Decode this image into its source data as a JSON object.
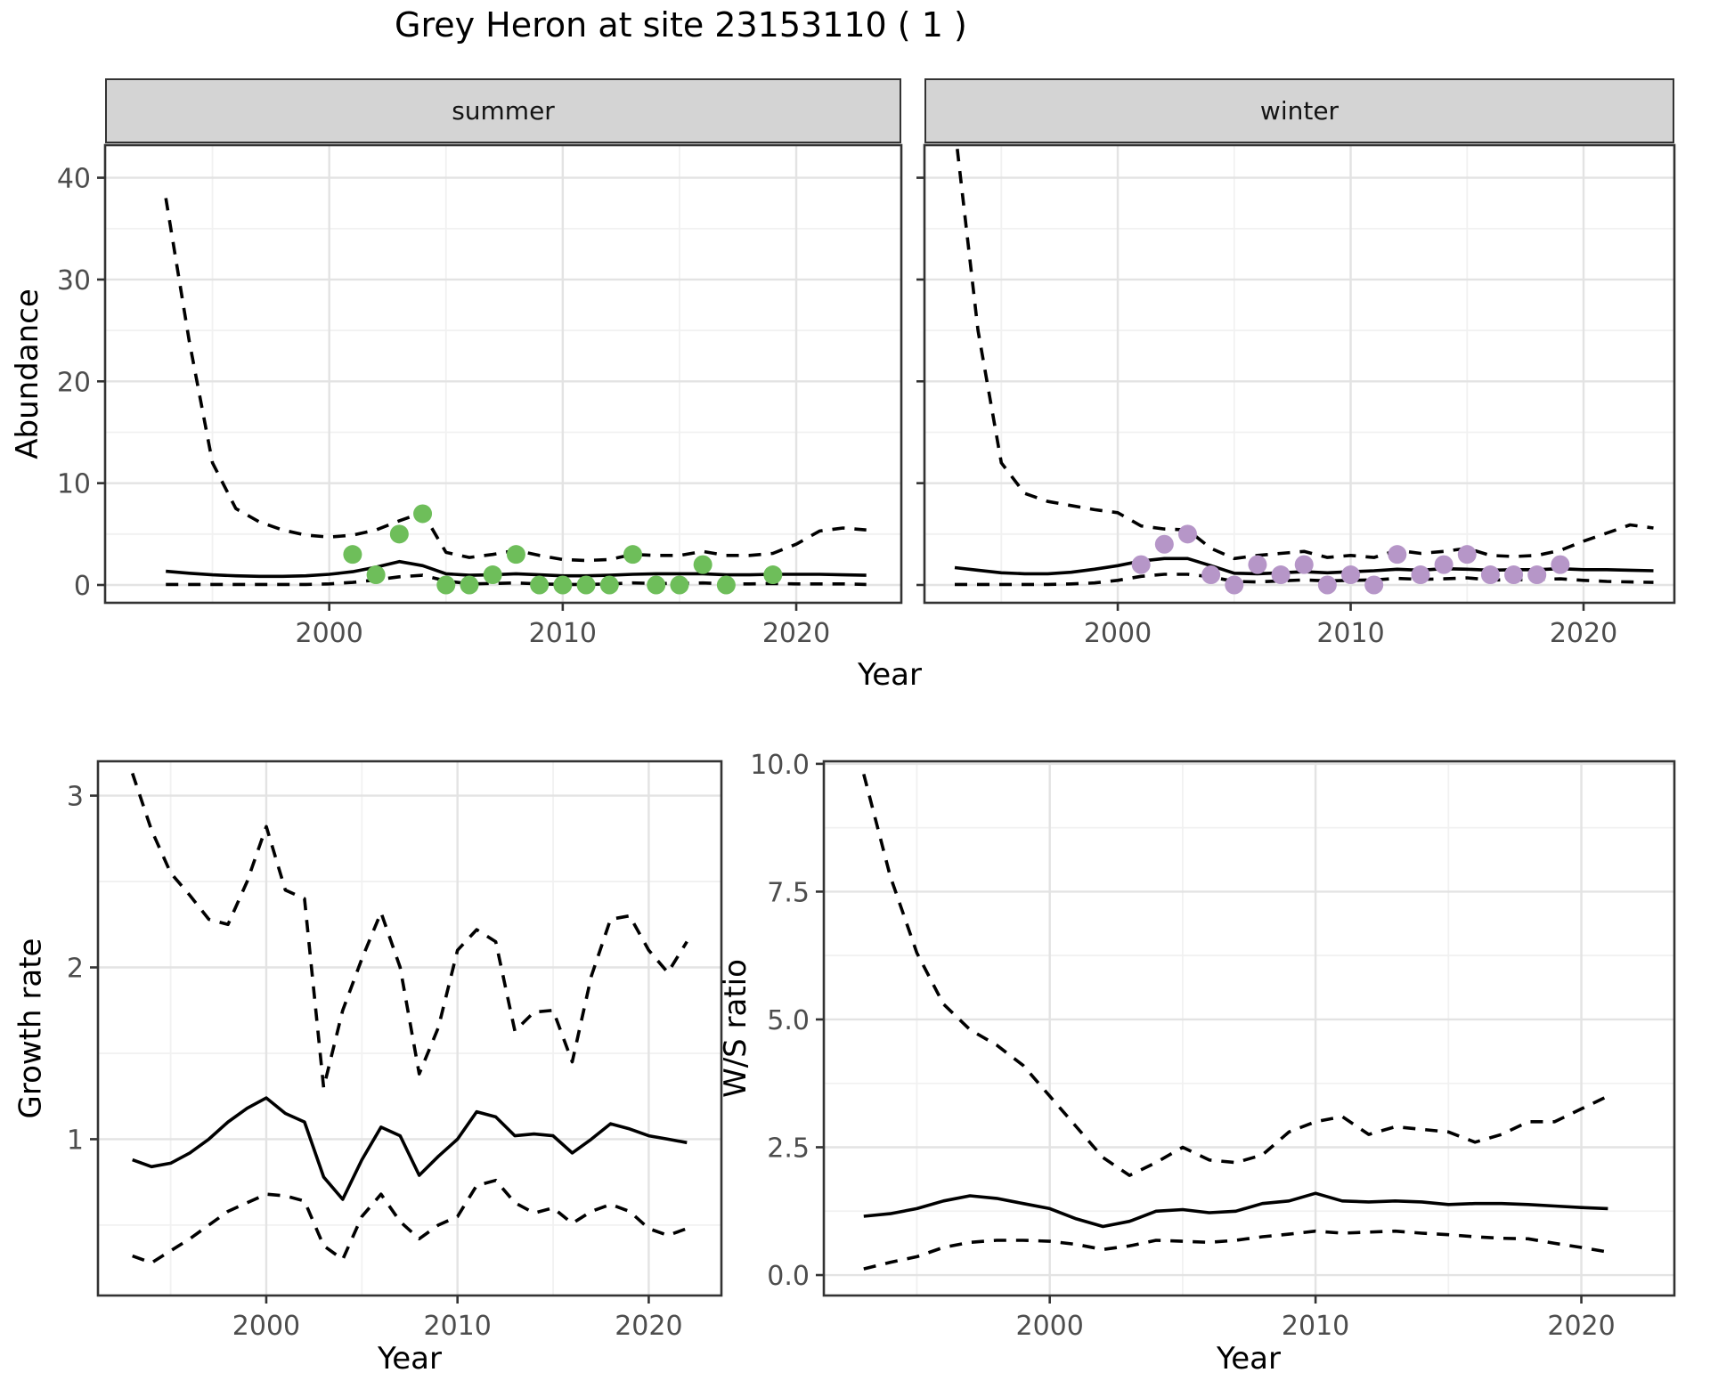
{
  "title": "Grey Heron at site 23153110 ( 1 )",
  "colors": {
    "summer_points": "#6EBE5A",
    "winter_points": "#B696C8",
    "line": "#000000",
    "grid_major": "#E3E3E3",
    "grid_minor": "#F1F1F1",
    "panel_border": "#333333",
    "tick_text": "#4d4d4d",
    "strip_fill": "#d4d4d4"
  },
  "labels": {
    "abundance_axis": "Abundance",
    "growth_axis": "Growth rate",
    "ws_axis": "W/S ratio",
    "year_axis_top": "Year",
    "year_axis_growth": "Year",
    "year_axis_ws": "Year"
  },
  "chart_data": [
    {
      "id": "summer",
      "type": "line",
      "facet_label": "summer",
      "xlabel": "Year",
      "ylabel": "Abundance",
      "xlim": [
        1990.4,
        2024.5
      ],
      "ylim": [
        -1.75,
        43.2
      ],
      "xticks": [
        2000,
        2010,
        2020
      ],
      "xtick_labels": [
        "2000",
        "2010",
        "2020"
      ],
      "xminor": [
        1995,
        2005,
        2015
      ],
      "yticks": [
        0,
        10,
        20,
        30,
        40
      ],
      "ytick_labels": [
        "0",
        "10",
        "20",
        "30",
        "40"
      ],
      "yminor": [
        5,
        15,
        25,
        35
      ],
      "show_ylabels": true,
      "years": [
        1993,
        1994,
        1995,
        1996,
        1997,
        1998,
        1999,
        2000,
        2001,
        2002,
        2003,
        2004,
        2005,
        2006,
        2007,
        2008,
        2009,
        2010,
        2011,
        2012,
        2013,
        2014,
        2015,
        2016,
        2017,
        2018,
        2019,
        2020,
        2021,
        2022,
        2023
      ],
      "series": [
        {
          "name": "upper-ci",
          "style": "dashed",
          "values": [
            38,
            24,
            12,
            7.5,
            6.2,
            5.4,
            4.9,
            4.7,
            4.9,
            5.4,
            6.3,
            7.1,
            3.2,
            2.7,
            3.0,
            3.4,
            2.9,
            2.5,
            2.4,
            2.5,
            3.0,
            2.9,
            2.9,
            3.3,
            2.9,
            2.9,
            3.1,
            4.0,
            5.3,
            5.6,
            5.4
          ]
        },
        {
          "name": "mean",
          "style": "solid",
          "values": [
            1.35,
            1.15,
            1.0,
            0.9,
            0.85,
            0.85,
            0.9,
            1.05,
            1.3,
            1.75,
            2.3,
            1.9,
            1.1,
            0.95,
            1.0,
            1.1,
            1.0,
            0.9,
            0.9,
            0.95,
            1.05,
            1.1,
            1.1,
            1.1,
            1.0,
            1.0,
            1.05,
            1.05,
            1.05,
            1.0,
            0.95
          ]
        },
        {
          "name": "lower-ci",
          "style": "dashed",
          "values": [
            0.05,
            0.05,
            0.05,
            0.05,
            0.05,
            0.05,
            0.05,
            0.1,
            0.25,
            0.5,
            0.8,
            0.95,
            0.4,
            0.1,
            0.15,
            0.2,
            0.1,
            0.05,
            0.05,
            0.1,
            0.2,
            0.15,
            0.15,
            0.2,
            0.1,
            0.1,
            0.15,
            0.1,
            0.1,
            0.1,
            0.05
          ]
        }
      ],
      "points": {
        "color_key": "summer_points",
        "data": [
          [
            2001,
            3
          ],
          [
            2002,
            1
          ],
          [
            2003,
            5
          ],
          [
            2004,
            7
          ],
          [
            2005,
            0
          ],
          [
            2006,
            0
          ],
          [
            2007,
            1
          ],
          [
            2008,
            3
          ],
          [
            2009,
            0
          ],
          [
            2010,
            0
          ],
          [
            2011,
            0
          ],
          [
            2012,
            0
          ],
          [
            2013,
            3
          ],
          [
            2014,
            0
          ],
          [
            2015,
            0
          ],
          [
            2016,
            2
          ],
          [
            2017,
            0
          ],
          [
            2019,
            1
          ]
        ]
      }
    },
    {
      "id": "winter",
      "type": "line",
      "facet_label": "winter",
      "xlabel": "Year",
      "ylabel": "Abundance",
      "xlim": [
        1991.7,
        2023.9
      ],
      "ylim": [
        -1.75,
        43.2
      ],
      "xticks": [
        2000,
        2010,
        2020
      ],
      "xtick_labels": [
        "2000",
        "2010",
        "2020"
      ],
      "xminor": [
        1995,
        2005,
        2015
      ],
      "yticks": [
        0,
        10,
        20,
        30,
        40
      ],
      "ytick_labels": [
        "0",
        "10",
        "20",
        "30",
        "40"
      ],
      "yminor": [
        5,
        15,
        25,
        35
      ],
      "show_ylabels": false,
      "years": [
        1993,
        1994,
        1995,
        1996,
        1997,
        1998,
        1999,
        2000,
        2001,
        2002,
        2003,
        2004,
        2005,
        2006,
        2007,
        2008,
        2009,
        2010,
        2011,
        2012,
        2013,
        2014,
        2015,
        2016,
        2017,
        2018,
        2019,
        2020,
        2021,
        2022,
        2023
      ],
      "series": [
        {
          "name": "upper-ci",
          "style": "dashed",
          "values": [
            45,
            25,
            12,
            9,
            8.2,
            7.8,
            7.4,
            7.1,
            5.8,
            5.5,
            5.4,
            3.6,
            2.6,
            2.9,
            3.1,
            3.3,
            2.7,
            2.9,
            2.7,
            3.4,
            3.1,
            3.3,
            3.6,
            2.9,
            2.8,
            2.9,
            3.4,
            4.3,
            5.1,
            5.9,
            5.6
          ]
        },
        {
          "name": "mean",
          "style": "solid",
          "values": [
            1.7,
            1.45,
            1.2,
            1.1,
            1.1,
            1.25,
            1.55,
            1.9,
            2.35,
            2.6,
            2.6,
            1.9,
            1.15,
            1.1,
            1.2,
            1.3,
            1.2,
            1.3,
            1.4,
            1.55,
            1.45,
            1.6,
            1.55,
            1.45,
            1.5,
            1.5,
            1.6,
            1.5,
            1.5,
            1.45,
            1.4
          ]
        },
        {
          "name": "lower-ci",
          "style": "dashed",
          "values": [
            0.05,
            0.05,
            0.05,
            0.05,
            0.05,
            0.1,
            0.2,
            0.45,
            0.85,
            1.05,
            1.05,
            0.8,
            0.35,
            0.3,
            0.4,
            0.5,
            0.4,
            0.45,
            0.5,
            0.65,
            0.55,
            0.6,
            0.7,
            0.5,
            0.5,
            0.55,
            0.6,
            0.45,
            0.35,
            0.3,
            0.25
          ]
        }
      ],
      "points": {
        "color_key": "winter_points",
        "data": [
          [
            2001,
            2
          ],
          [
            2002,
            4
          ],
          [
            2003,
            5
          ],
          [
            2004,
            1
          ],
          [
            2005,
            0
          ],
          [
            2006,
            2
          ],
          [
            2007,
            1
          ],
          [
            2008,
            2
          ],
          [
            2009,
            0
          ],
          [
            2010,
            1
          ],
          [
            2011,
            0
          ],
          [
            2012,
            3
          ],
          [
            2013,
            1
          ],
          [
            2014,
            2
          ],
          [
            2015,
            3
          ],
          [
            2016,
            1
          ],
          [
            2017,
            1
          ],
          [
            2018,
            1
          ],
          [
            2019,
            2
          ]
        ]
      }
    },
    {
      "id": "growth",
      "type": "line",
      "facet_label": "",
      "xlabel": "Year",
      "ylabel": "Growth rate",
      "xlim": [
        1991.2,
        2023.8
      ],
      "ylim": [
        0.09,
        3.2
      ],
      "xticks": [
        2000,
        2010,
        2020
      ],
      "xtick_labels": [
        "2000",
        "2010",
        "2020"
      ],
      "xminor": [
        1995,
        2005,
        2015
      ],
      "yticks": [
        1,
        2,
        3
      ],
      "ytick_labels": [
        "1",
        "2",
        "3"
      ],
      "yminor": [
        0.5,
        1.5,
        2.5
      ],
      "show_ylabels": true,
      "years": [
        1993,
        1994,
        1995,
        1996,
        1997,
        1998,
        1999,
        2000,
        2001,
        2002,
        2003,
        2004,
        2005,
        2006,
        2007,
        2008,
        2009,
        2010,
        2011,
        2012,
        2013,
        2014,
        2015,
        2016,
        2017,
        2018,
        2019,
        2020,
        2021,
        2022
      ],
      "series": [
        {
          "name": "upper-ci",
          "style": "dashed",
          "values": [
            3.13,
            2.8,
            2.55,
            2.42,
            2.28,
            2.25,
            2.5,
            2.82,
            2.45,
            2.4,
            1.3,
            1.75,
            2.05,
            2.32,
            2.0,
            1.38,
            1.65,
            2.1,
            2.22,
            2.15,
            1.63,
            1.74,
            1.75,
            1.45,
            1.95,
            2.28,
            2.3,
            2.1,
            1.97,
            2.15
          ]
        },
        {
          "name": "mean",
          "style": "solid",
          "values": [
            0.88,
            0.84,
            0.86,
            0.92,
            1.0,
            1.1,
            1.18,
            1.24,
            1.15,
            1.1,
            0.78,
            0.65,
            0.88,
            1.07,
            1.02,
            0.79,
            0.9,
            1.0,
            1.16,
            1.13,
            1.02,
            1.03,
            1.02,
            0.92,
            1.0,
            1.09,
            1.06,
            1.02,
            1.0,
            0.98
          ]
        },
        {
          "name": "lower-ci",
          "style": "dashed",
          "values": [
            0.32,
            0.28,
            0.35,
            0.42,
            0.5,
            0.58,
            0.63,
            0.68,
            0.67,
            0.64,
            0.38,
            0.3,
            0.55,
            0.68,
            0.52,
            0.42,
            0.5,
            0.55,
            0.73,
            0.76,
            0.63,
            0.57,
            0.6,
            0.51,
            0.58,
            0.62,
            0.58,
            0.48,
            0.44,
            0.48
          ]
        }
      ],
      "points": null
    },
    {
      "id": "ws",
      "type": "line",
      "facet_label": "",
      "xlabel": "Year",
      "ylabel": "W/S ratio",
      "xlim": [
        1991.5,
        2023.5
      ],
      "ylim": [
        -0.4,
        10.05
      ],
      "xticks": [
        2000,
        2010,
        2020
      ],
      "xtick_labels": [
        "2000",
        "2010",
        "2020"
      ],
      "xminor": [
        1995,
        2005,
        2015
      ],
      "yticks": [
        0,
        2.5,
        5,
        7.5,
        10
      ],
      "ytick_labels": [
        "0.0",
        "2.5",
        "5.0",
        "7.5",
        "10.0"
      ],
      "yminor": [
        1.25,
        3.75,
        6.25,
        8.75
      ],
      "show_ylabels": true,
      "years": [
        1993,
        1994,
        1995,
        1996,
        1997,
        1998,
        1999,
        2000,
        2001,
        2002,
        2003,
        2004,
        2005,
        2006,
        2007,
        2008,
        2009,
        2010,
        2011,
        2012,
        2013,
        2014,
        2015,
        2016,
        2017,
        2018,
        2019,
        2020,
        2021
      ],
      "series": [
        {
          "name": "upper-ci",
          "style": "dashed",
          "values": [
            9.8,
            7.8,
            6.3,
            5.3,
            4.8,
            4.5,
            4.1,
            3.5,
            2.9,
            2.3,
            1.95,
            2.2,
            2.5,
            2.25,
            2.2,
            2.35,
            2.8,
            3.0,
            3.1,
            2.75,
            2.9,
            2.85,
            2.8,
            2.6,
            2.75,
            3.0,
            3.0,
            3.25,
            3.5
          ]
        },
        {
          "name": "mean",
          "style": "solid",
          "values": [
            1.15,
            1.2,
            1.3,
            1.45,
            1.55,
            1.5,
            1.4,
            1.3,
            1.1,
            0.95,
            1.05,
            1.25,
            1.28,
            1.22,
            1.25,
            1.4,
            1.45,
            1.6,
            1.45,
            1.43,
            1.45,
            1.43,
            1.38,
            1.4,
            1.4,
            1.38,
            1.35,
            1.32,
            1.3
          ]
        },
        {
          "name": "lower-ci",
          "style": "dashed",
          "values": [
            0.12,
            0.25,
            0.36,
            0.54,
            0.64,
            0.68,
            0.68,
            0.66,
            0.6,
            0.5,
            0.57,
            0.68,
            0.66,
            0.64,
            0.68,
            0.75,
            0.8,
            0.86,
            0.82,
            0.84,
            0.86,
            0.82,
            0.79,
            0.75,
            0.72,
            0.71,
            0.62,
            0.54,
            0.45
          ]
        }
      ],
      "points": null
    }
  ],
  "layout_note_values": {
    "summer_panel": [
      118,
      163,
      894,
      514
    ],
    "winter_panel": [
      1038,
      163,
      842,
      514
    ],
    "growth_panel": [
      110,
      855,
      700,
      600
    ],
    "ws_panel": [
      925,
      855,
      955,
      600
    ]
  }
}
